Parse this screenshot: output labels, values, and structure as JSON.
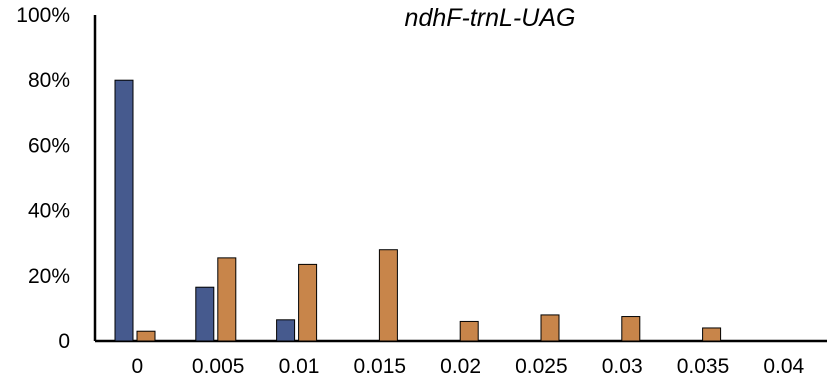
{
  "chart_data": {
    "type": "bar",
    "title": "ndhF-trnL-UAG",
    "xlabel": "",
    "ylabel": "",
    "categories": [
      "0",
      "0.005",
      "0.01",
      "0.015",
      "0.02",
      "0.025",
      "0.03",
      "0.035",
      "0.04"
    ],
    "y_ticks": [
      "0",
      "20%",
      "40%",
      "60%",
      "80%",
      "100%"
    ],
    "ylim": [
      0,
      100
    ],
    "grid": false,
    "legend": "none",
    "series": [
      {
        "color": "#465a8e",
        "values": [
          80,
          16.5,
          6.5,
          0,
          0,
          0,
          0,
          0,
          0
        ]
      },
      {
        "color": "#c8854a",
        "values": [
          3,
          25.5,
          23.5,
          28,
          6,
          8,
          7.5,
          4,
          0
        ]
      }
    ]
  }
}
